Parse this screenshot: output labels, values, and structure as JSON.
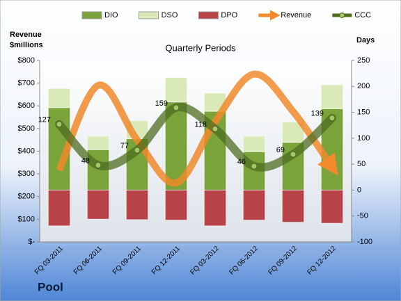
{
  "chart_data": {
    "type": "bar",
    "title": "Quarterly Periods",
    "ylabel": [
      "Revenue",
      "$millions"
    ],
    "y2label": "Days",
    "footer": "Pool",
    "categories": [
      "FQ 03-2011",
      "FQ 06-2011",
      "FQ 09-2011",
      "FQ 12-2011",
      "FQ 03-2012",
      "FQ 06-2012",
      "FQ 09-2012",
      "FQ 12-2012"
    ],
    "series": [
      {
        "name": "DIO",
        "type": "bar",
        "axis": "y2",
        "color": "#7aa33a",
        "values": [
          159,
          78,
          99,
          170,
          152,
          74,
          92,
          157
        ]
      },
      {
        "name": "DSO",
        "type": "bar",
        "axis": "y2",
        "color": "#d9eab8",
        "values": [
          37,
          26,
          35,
          47,
          35,
          30,
          39,
          46
        ]
      },
      {
        "name": "DPO",
        "type": "bar",
        "axis": "y2",
        "color": "#b8444a",
        "values": [
          -69,
          -56,
          -57,
          -58,
          -69,
          -58,
          -62,
          -64
        ]
      },
      {
        "name": "Revenue",
        "type": "line",
        "axis": "y",
        "color": "#f08a2c",
        "values": [
          316,
          690,
          450,
          260,
          530,
          740,
          575,
          330
        ]
      },
      {
        "name": "CCC",
        "type": "line",
        "axis": "y2",
        "color": "#4f6e22",
        "values": [
          127,
          48,
          77,
          159,
          118,
          46,
          69,
          139
        ]
      }
    ],
    "ylim": [
      0,
      800
    ],
    "yticks": [
      {
        "value": 0,
        "label": "$-"
      },
      {
        "value": 100,
        "label": "$100"
      },
      {
        "value": 200,
        "label": "$200"
      },
      {
        "value": 300,
        "label": "$300"
      },
      {
        "value": 400,
        "label": "$400"
      },
      {
        "value": 500,
        "label": "$500"
      },
      {
        "value": 600,
        "label": "$600"
      },
      {
        "value": 700,
        "label": "$700"
      },
      {
        "value": 800,
        "label": "$800"
      }
    ],
    "y2lim": [
      -100,
      250
    ],
    "y2ticks": [
      -100,
      -50,
      0,
      50,
      100,
      150,
      200,
      250
    ],
    "legend": "top"
  }
}
